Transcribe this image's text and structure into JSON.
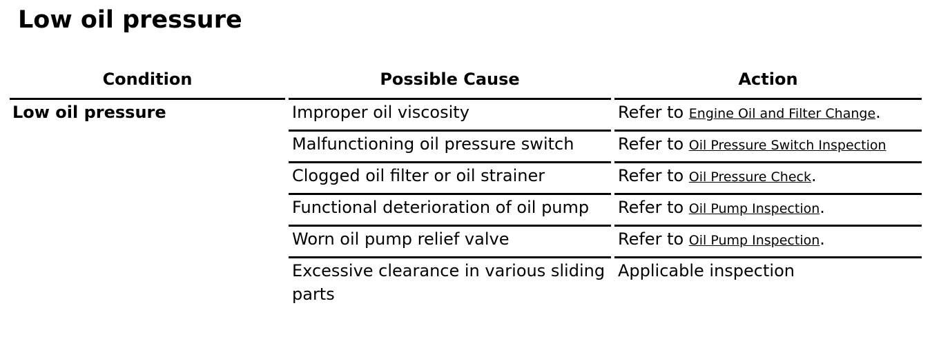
{
  "title": "Low oil pressure",
  "table": {
    "headers": [
      "Condition",
      "Possible Cause",
      "Action"
    ],
    "condition": "Low oil pressure",
    "rows": [
      {
        "cause": "Improper oil viscosity",
        "action_prefix": "Refer to ",
        "link": "Engine Oil and Filter Change",
        "suffix": "."
      },
      {
        "cause": "Malfunctioning oil pressure switch",
        "action_prefix": "Refer to ",
        "link": "Oil Pressure Switch Inspection",
        "suffix": ""
      },
      {
        "cause": "Clogged oil filter or oil strainer",
        "action_prefix": "Refer to ",
        "link": "Oil Pressure Check",
        "suffix": "."
      },
      {
        "cause": "Functional deterioration of oil pump",
        "action_prefix": "Refer to ",
        "link": "Oil Pump Inspection",
        "suffix": "."
      },
      {
        "cause": "Worn oil pump relief valve",
        "action_prefix": "Refer to ",
        "link": "Oil Pump Inspection",
        "suffix": "."
      },
      {
        "cause": "Excessive clearance in various sliding parts",
        "action_prefix": "Applicable inspection",
        "link": "",
        "suffix": ""
      }
    ]
  }
}
